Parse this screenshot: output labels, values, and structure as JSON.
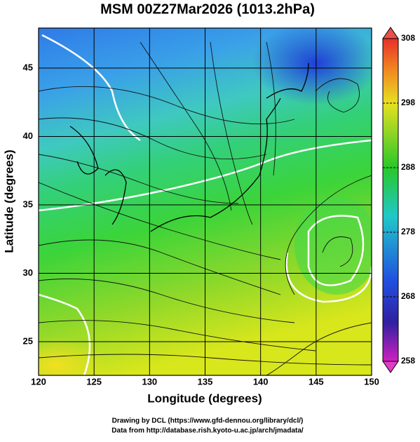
{
  "title": "MSM 00Z27Mar2026 (1013.2hPa)",
  "x_axis": {
    "label": "Longitude (degrees)",
    "lim": [
      120,
      150
    ],
    "ticks": [
      120,
      125,
      130,
      135,
      140,
      145,
      150
    ]
  },
  "y_axis": {
    "label": "Latitude  (degrees)",
    "lim": [
      22.54,
      47.92
    ],
    "ticks": [
      25,
      30,
      35,
      40,
      45
    ]
  },
  "colorbar": {
    "lim": [
      258,
      308
    ],
    "ticks": [
      258,
      268,
      278,
      288,
      298,
      308
    ]
  },
  "footer": [
    "Drawing by DCL (https://www.gfd-dennou.org/library/dcl/)",
    "Data from http://database.rish.kyoto-u.ac.jp/arch/jmadata/"
  ]
}
